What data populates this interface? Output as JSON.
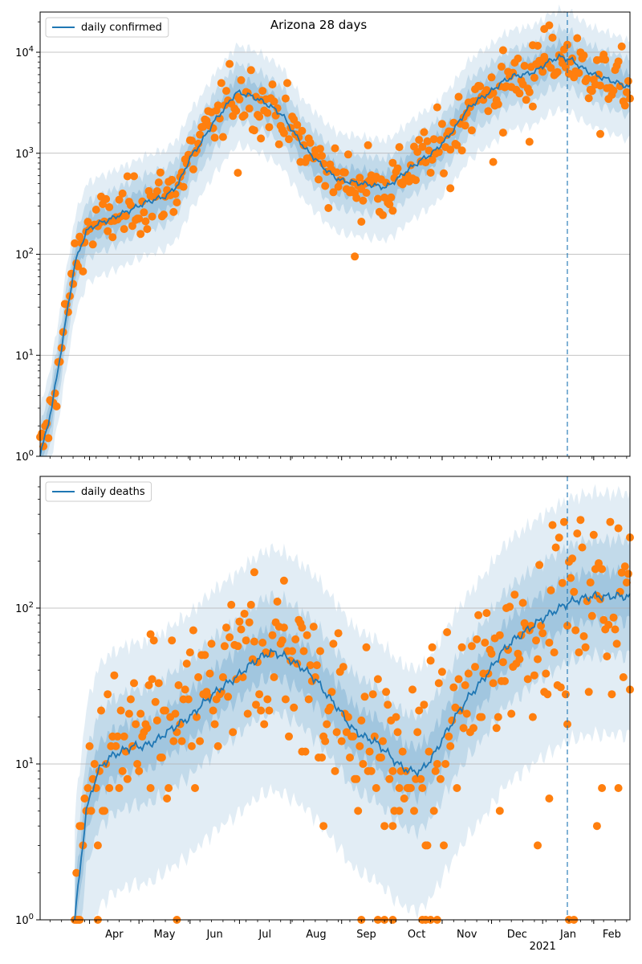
{
  "title": "Arizona 28 days",
  "colors": {
    "line": "#1f77b4",
    "points": "#ff7f0e",
    "band": "#1f77b4",
    "grid": "#b0b0b0",
    "vline": "#1f77b4"
  },
  "x_axis": {
    "start_date": "2020-03-02",
    "end_date": "2021-02-23",
    "month_labels": [
      "Apr",
      "May",
      "Jun",
      "Jul",
      "Aug",
      "Sep",
      "Oct",
      "Nov",
      "Dec",
      "Jan",
      "Feb"
    ],
    "month_dates": [
      "2020-04-01",
      "2020-05-01",
      "2020-06-01",
      "2020-07-01",
      "2020-08-01",
      "2020-09-01",
      "2020-10-01",
      "2020-11-01",
      "2020-12-01",
      "2021-01-01",
      "2021-02-01"
    ],
    "year_label": "2021",
    "year_label_month": "Jan"
  },
  "forecast_start": "2021-01-16",
  "chart_data": [
    {
      "type": "line",
      "legend": "daily confirmed",
      "yscale": "log",
      "ylim": [
        1,
        25000
      ],
      "yticks": [
        1,
        10,
        100,
        1000,
        10000
      ],
      "ytick_labels": [
        "10^0",
        "10^1",
        "10^2",
        "10^3",
        "10^4"
      ],
      "grid": true,
      "legend_position": "top-left",
      "keypoints": [
        [
          "2020-03-02",
          1
        ],
        [
          "2020-03-09",
          3
        ],
        [
          "2020-03-16",
          15
        ],
        [
          "2020-03-23",
          80
        ],
        [
          "2020-03-30",
          170
        ],
        [
          "2020-04-06",
          200
        ],
        [
          "2020-04-13",
          220
        ],
        [
          "2020-04-20",
          250
        ],
        [
          "2020-04-27",
          280
        ],
        [
          "2020-05-04",
          320
        ],
        [
          "2020-05-11",
          350
        ],
        [
          "2020-05-18",
          380
        ],
        [
          "2020-05-25",
          500
        ],
        [
          "2020-06-01",
          900
        ],
        [
          "2020-06-08",
          1300
        ],
        [
          "2020-06-15",
          2000
        ],
        [
          "2020-06-22",
          2800
        ],
        [
          "2020-06-29",
          4000
        ],
        [
          "2020-07-06",
          3800
        ],
        [
          "2020-07-13",
          3400
        ],
        [
          "2020-07-20",
          2900
        ],
        [
          "2020-07-27",
          2400
        ],
        [
          "2020-08-03",
          1600
        ],
        [
          "2020-08-10",
          1100
        ],
        [
          "2020-08-17",
          850
        ],
        [
          "2020-08-24",
          650
        ],
        [
          "2020-08-31",
          540
        ],
        [
          "2020-09-07",
          520
        ],
        [
          "2020-09-14",
          500
        ],
        [
          "2020-09-21",
          480
        ],
        [
          "2020-09-28",
          460
        ],
        [
          "2020-10-05",
          560
        ],
        [
          "2020-10-12",
          700
        ],
        [
          "2020-10-19",
          850
        ],
        [
          "2020-10-26",
          1000
        ],
        [
          "2020-11-02",
          1300
        ],
        [
          "2020-11-09",
          1800
        ],
        [
          "2020-11-16",
          2700
        ],
        [
          "2020-11-23",
          3400
        ],
        [
          "2020-11-30",
          4000
        ],
        [
          "2020-12-07",
          5000
        ],
        [
          "2020-12-14",
          5800
        ],
        [
          "2020-12-21",
          6000
        ],
        [
          "2020-12-28",
          6500
        ],
        [
          "2021-01-04",
          8000
        ],
        [
          "2021-01-11",
          9000
        ],
        [
          "2021-01-18",
          8500
        ],
        [
          "2021-01-25",
          7000
        ],
        [
          "2021-02-01",
          6000
        ],
        [
          "2021-02-08",
          5500
        ],
        [
          "2021-02-15",
          5000
        ],
        [
          "2021-02-23",
          4500
        ]
      ],
      "band_inner": [
        0.72,
        1.38
      ],
      "band_mid": [
        0.52,
        1.9
      ],
      "band_outer": [
        0.3,
        2.9
      ],
      "outlier_points": [
        [
          "2020-06-30",
          640
        ],
        [
          "2020-07-14",
          1400
        ],
        [
          "2020-09-09",
          95
        ],
        [
          "2020-09-13",
          210
        ],
        [
          "2020-09-17",
          1200
        ],
        [
          "2020-10-02",
          270
        ],
        [
          "2020-11-06",
          450
        ],
        [
          "2020-12-02",
          820
        ],
        [
          "2020-12-08",
          1600
        ],
        [
          "2020-12-24",
          1300
        ],
        [
          "2020-12-26",
          2900
        ],
        [
          "2021-01-02",
          17000
        ],
        [
          "2021-02-05",
          1550
        ]
      ]
    },
    {
      "type": "line",
      "legend": "daily deaths",
      "yscale": "log",
      "ylim": [
        1,
        700
      ],
      "yticks": [
        1,
        10,
        100
      ],
      "ytick_labels": [
        "10^0",
        "10^1",
        "10^2"
      ],
      "grid": true,
      "legend_position": "top-left",
      "keypoints": [
        [
          "2020-03-23",
          1
        ],
        [
          "2020-03-30",
          5
        ],
        [
          "2020-04-06",
          9
        ],
        [
          "2020-04-13",
          11
        ],
        [
          "2020-04-20",
          12
        ],
        [
          "2020-04-27",
          13
        ],
        [
          "2020-05-04",
          13
        ],
        [
          "2020-05-11",
          14
        ],
        [
          "2020-05-18",
          16
        ],
        [
          "2020-05-25",
          18
        ],
        [
          "2020-06-01",
          20
        ],
        [
          "2020-06-08",
          24
        ],
        [
          "2020-06-15",
          28
        ],
        [
          "2020-06-22",
          32
        ],
        [
          "2020-06-29",
          36
        ],
        [
          "2020-07-06",
          42
        ],
        [
          "2020-07-13",
          48
        ],
        [
          "2020-07-20",
          52
        ],
        [
          "2020-07-27",
          50
        ],
        [
          "2020-08-03",
          45
        ],
        [
          "2020-08-10",
          40
        ],
        [
          "2020-08-17",
          34
        ],
        [
          "2020-08-24",
          27
        ],
        [
          "2020-08-31",
          22
        ],
        [
          "2020-09-07",
          17
        ],
        [
          "2020-09-14",
          15
        ],
        [
          "2020-09-21",
          14
        ],
        [
          "2020-09-28",
          12
        ],
        [
          "2020-10-05",
          10
        ],
        [
          "2020-10-12",
          9
        ],
        [
          "2020-10-19",
          9
        ],
        [
          "2020-10-26",
          11
        ],
        [
          "2020-11-02",
          15
        ],
        [
          "2020-11-09",
          20
        ],
        [
          "2020-11-16",
          26
        ],
        [
          "2020-11-23",
          32
        ],
        [
          "2020-11-30",
          40
        ],
        [
          "2020-12-07",
          52
        ],
        [
          "2020-12-14",
          62
        ],
        [
          "2020-12-21",
          70
        ],
        [
          "2020-12-28",
          80
        ],
        [
          "2021-01-04",
          90
        ],
        [
          "2021-01-11",
          100
        ],
        [
          "2021-01-18",
          110
        ],
        [
          "2021-01-25",
          115
        ],
        [
          "2021-02-01",
          120
        ],
        [
          "2021-02-08",
          118
        ],
        [
          "2021-02-15",
          120
        ],
        [
          "2021-02-23",
          118
        ]
      ],
      "band_inner": [
        0.7,
        1.45
      ],
      "band_mid": [
        0.42,
        2.3
      ],
      "band_outer": [
        0.13,
        4.6
      ],
      "zero_dates": [
        "2020-03-24",
        "2020-03-26",
        "2020-04-06",
        "2020-05-24",
        "2020-09-13",
        "2020-09-23",
        "2020-09-27",
        "2020-10-02",
        "2020-10-20",
        "2020-10-22",
        "2020-10-25",
        "2020-10-29",
        "2021-01-17",
        "2021-01-20"
      ],
      "outlier_points": [
        [
          "2020-05-08",
          68
        ],
        [
          "2020-07-10",
          170
        ],
        [
          "2020-07-28",
          150
        ],
        [
          "2020-08-08",
          12
        ],
        [
          "2020-08-21",
          4
        ],
        [
          "2020-10-02",
          4
        ],
        [
          "2020-10-06",
          5
        ],
        [
          "2020-12-06",
          5
        ],
        [
          "2020-12-29",
          3
        ],
        [
          "2021-01-05",
          6
        ],
        [
          "2021-01-16",
          18
        ],
        [
          "2021-02-03",
          4
        ],
        [
          "2021-02-06",
          7
        ],
        [
          "2021-02-16",
          7
        ],
        [
          "2021-02-23",
          30
        ]
      ]
    }
  ]
}
